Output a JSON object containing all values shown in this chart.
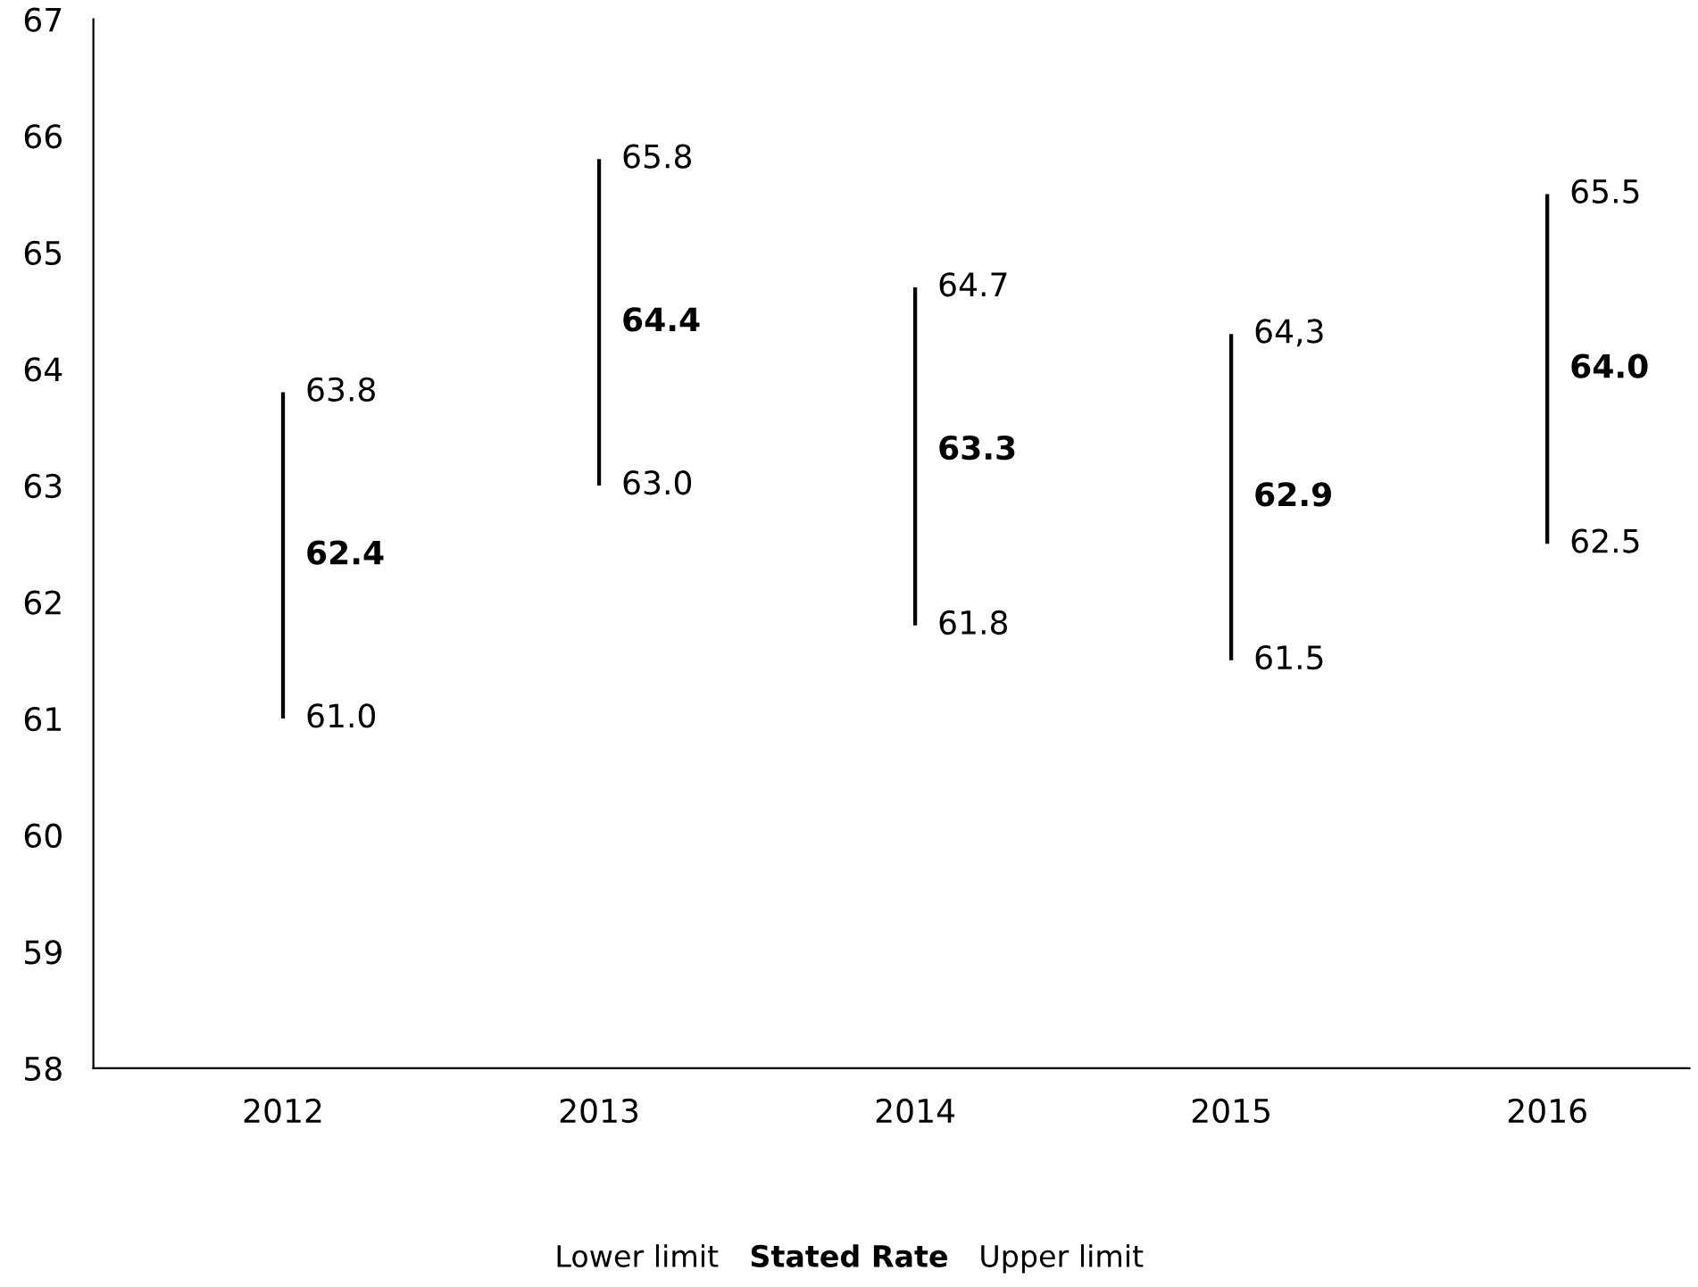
{
  "chart_data": {
    "type": "bar",
    "categories": [
      "2012",
      "2013",
      "2014",
      "2015",
      "2016"
    ],
    "series": [
      {
        "color": "#000000",
        "base": [
          61.0,
          63.0,
          61.8,
          61.5,
          62.5
        ],
        "values": [
          2.8,
          2.8,
          2.9,
          2.8,
          3.0
        ]
      }
    ],
    "ylim": [
      58,
      67
    ],
    "yticks": [
      58,
      59,
      60,
      61,
      62,
      63,
      64,
      65,
      66,
      67
    ],
    "annotations": [
      {
        "text": "63.8",
        "x": "2012",
        "y": 63.8
      },
      {
        "text": "62.4",
        "x": "2012",
        "y": 62.4
      },
      {
        "text": "61.0",
        "x": "2012",
        "y": 61.0
      },
      {
        "text": "65.8",
        "x": "2013",
        "y": 65.8
      },
      {
        "text": "64.4",
        "x": "2013",
        "y": 64.4
      },
      {
        "text": "63.0",
        "x": "2013",
        "y": 63.0
      },
      {
        "text": "64.7",
        "x": "2014",
        "y": 64.7
      },
      {
        "text": "63.3",
        "x": "2014",
        "y": 63.3
      },
      {
        "text": "61.8",
        "x": "2014",
        "y": 61.8
      },
      {
        "text": "64,3",
        "x": "2015",
        "y": 64.3
      },
      {
        "text": "62.9",
        "x": "2015",
        "y": 62.9
      },
      {
        "text": "61.5",
        "x": "2015",
        "y": 61.5
      },
      {
        "text": "65.5",
        "x": "2016",
        "y": 65.5
      },
      {
        "text": "64.0",
        "x": "2016",
        "y": 64.0
      },
      {
        "text": "62.5",
        "x": "2016",
        "y": 62.5
      },
      "Lower limit",
      "Stated Rate",
      "Upper limit"
    ]
  }
}
